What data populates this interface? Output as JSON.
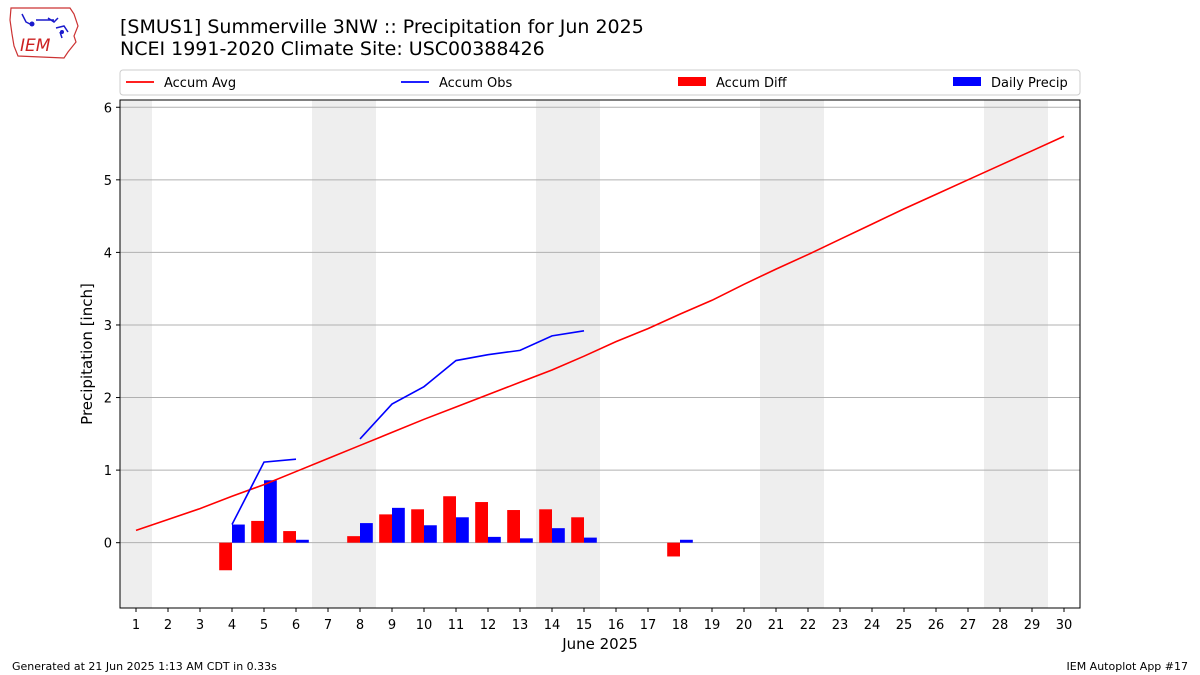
{
  "header": {
    "title_line1": "[SMUS1] Summerville 3NW :: Precipitation for Jun 2025",
    "title_line2": "NCEI 1991-2020 Climate Site: USC00388426",
    "logo_text": "IEM"
  },
  "footer": {
    "generated": "Generated at 21 Jun 2025 1:13 AM CDT in 0.33s",
    "app": "IEM Autoplot App #17"
  },
  "chart_data": {
    "type": "bar",
    "title": "",
    "xlabel": "June 2025",
    "ylabel": "Precipitation [inch]",
    "xlim": [
      0.5,
      30.5
    ],
    "ylim": [
      -0.9,
      6.1
    ],
    "yticks": [
      0,
      1,
      2,
      3,
      4,
      5,
      6
    ],
    "grid": true,
    "legend_position": "top",
    "weekend_shading": [
      [
        0.5,
        1.5
      ],
      [
        6.5,
        8.5
      ],
      [
        13.5,
        15.5
      ],
      [
        20.5,
        22.5
      ],
      [
        27.5,
        29.5
      ]
    ],
    "x": [
      1,
      2,
      3,
      4,
      5,
      6,
      7,
      8,
      9,
      10,
      11,
      12,
      13,
      14,
      15,
      16,
      17,
      18,
      19,
      20,
      21,
      22,
      23,
      24,
      25,
      26,
      27,
      28,
      29,
      30
    ],
    "series": [
      {
        "name": "Accum Avg",
        "kind": "line",
        "color": "#ff0000",
        "values": [
          0.17,
          0.32,
          0.47,
          0.64,
          0.8,
          0.98,
          1.16,
          1.34,
          1.52,
          1.7,
          1.87,
          2.04,
          2.21,
          2.38,
          2.57,
          2.77,
          2.95,
          3.15,
          3.34,
          3.56,
          3.77,
          3.97,
          4.18,
          4.39,
          4.6,
          4.8,
          5.0,
          5.2,
          5.4,
          5.6
        ]
      },
      {
        "name": "Accum Obs",
        "kind": "line",
        "color": "#0000ff",
        "values": [
          null,
          null,
          null,
          0.25,
          1.11,
          1.15,
          null,
          1.43,
          1.91,
          2.15,
          2.51,
          2.59,
          2.65,
          2.85,
          2.92,
          null,
          null,
          null,
          null,
          null,
          null,
          null,
          null,
          null,
          null,
          null,
          null,
          null,
          null,
          null
        ]
      },
      {
        "name": "Accum Diff",
        "kind": "bar",
        "color": "#ff0000",
        "values": [
          null,
          null,
          null,
          -0.38,
          0.3,
          0.16,
          null,
          0.09,
          0.39,
          0.46,
          0.64,
          0.56,
          0.45,
          0.46,
          0.35,
          null,
          null,
          -0.19,
          null,
          null,
          null,
          null,
          null,
          null,
          null,
          null,
          null,
          null,
          null,
          null
        ]
      },
      {
        "name": "Daily Precip",
        "kind": "bar",
        "color": "#0000ff",
        "values": [
          null,
          null,
          null,
          0.25,
          0.86,
          0.04,
          null,
          0.27,
          0.48,
          0.24,
          0.35,
          0.08,
          0.06,
          0.2,
          0.07,
          null,
          null,
          0.04,
          null,
          null,
          null,
          null,
          null,
          null,
          null,
          null,
          null,
          null,
          null,
          null
        ]
      }
    ]
  }
}
